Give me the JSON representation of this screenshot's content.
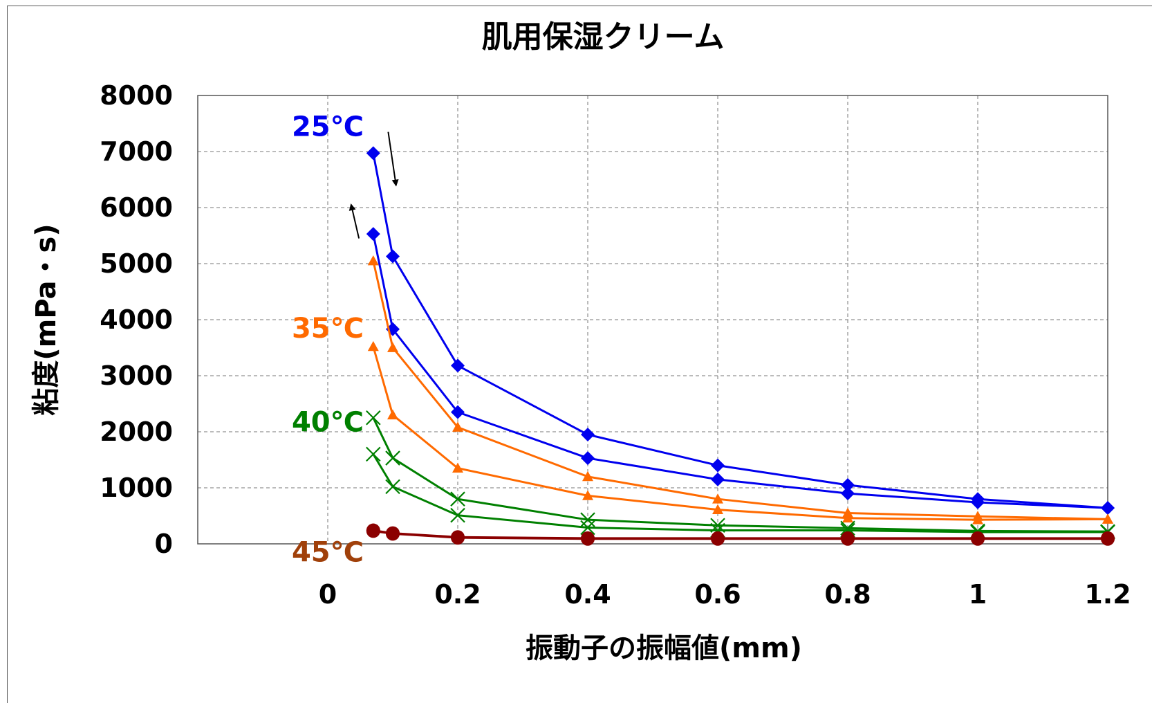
{
  "chart_data": {
    "type": "line",
    "title": "肌用保湿クリーム",
    "xlabel": "振動子の振幅値(mm)",
    "ylabel": "粘度(mPa・s)",
    "xlim": [
      -0.2,
      1.2
    ],
    "ylim": [
      0,
      8000
    ],
    "xticks": [
      "0",
      "0.2",
      "0.4",
      "0.6",
      "0.8",
      "1",
      "1.2"
    ],
    "xtick_values": [
      0,
      0.2,
      0.4,
      0.6,
      0.8,
      1.0,
      1.2
    ],
    "yticks": [
      "0",
      "1000",
      "2000",
      "3000",
      "4000",
      "5000",
      "6000",
      "7000",
      "8000"
    ],
    "ytick_values": [
      0,
      1000,
      2000,
      3000,
      4000,
      5000,
      6000,
      7000,
      8000
    ],
    "grid": true,
    "series": [
      {
        "name": "25℃",
        "color": "#0000ee",
        "marker": "diamond",
        "label_value": [
          0,
          7450
        ],
        "curves": [
          {
            "x": [
              0.07,
              0.1,
              0.2,
              0.4,
              0.6,
              0.8,
              1.0,
              1.2
            ],
            "y": [
              6970,
              5130,
              3180,
              1950,
              1400,
              1050,
              800,
              640
            ]
          },
          {
            "x": [
              0.07,
              0.1,
              0.2,
              0.4,
              0.6,
              0.8,
              1.0,
              1.2
            ],
            "y": [
              5530,
              3830,
              2350,
              1530,
              1150,
              900,
              740,
              640
            ]
          }
        ]
      },
      {
        "name": "35℃",
        "color": "#ff6a00",
        "marker": "triangle",
        "label_value": [
          0,
          3850
        ],
        "curves": [
          {
            "x": [
              0.07,
              0.1,
              0.2,
              0.4,
              0.6,
              0.8,
              1.0,
              1.2
            ],
            "y": [
              5050,
              3500,
              2080,
              1200,
              800,
              550,
              490,
              440
            ]
          },
          {
            "x": [
              0.07,
              0.1,
              0.2,
              0.4,
              0.6,
              0.8,
              1.0,
              1.2
            ],
            "y": [
              3520,
              2300,
              1350,
              860,
              610,
              460,
              430,
              440
            ]
          }
        ]
      },
      {
        "name": "40℃",
        "color": "#008000",
        "marker": "cross",
        "label_value": [
          0,
          2180
        ],
        "curves": [
          {
            "x": [
              0.07,
              0.1,
              0.2,
              0.4,
              0.6,
              0.8,
              1.0,
              1.2
            ],
            "y": [
              2250,
              1530,
              800,
              430,
              330,
              280,
              230,
              220
            ]
          },
          {
            "x": [
              0.07,
              0.1,
              0.2,
              0.4,
              0.6,
              0.8,
              1.0,
              1.2
            ],
            "y": [
              1600,
              1020,
              510,
              290,
              240,
              240,
              210,
              210
            ]
          }
        ]
      },
      {
        "name": "45℃",
        "color": "#8b0000",
        "label_color": "#a0400a",
        "marker": "circle",
        "label_value": [
          0,
          -140
        ],
        "curves": [
          {
            "x": [
              0.07,
              0.1,
              0.2,
              0.4,
              0.6,
              0.8,
              1.0,
              1.2
            ],
            "y": [
              240,
              190,
              120,
              100,
              100,
              100,
              100,
              100
            ]
          },
          {
            "x": [
              0.07,
              0.1,
              0.2,
              0.4,
              0.6,
              0.8,
              1.0,
              1.2
            ],
            "y": [
              230,
              180,
              110,
              90,
              90,
              90,
              90,
              90
            ]
          }
        ]
      }
    ],
    "annotations": [
      {
        "type": "arrow",
        "direction": "down",
        "from": [
          0.093,
          7350
        ],
        "to": [
          0.105,
          6400
        ]
      },
      {
        "type": "arrow",
        "direction": "up",
        "from": [
          0.048,
          5450
        ],
        "to": [
          0.036,
          6050
        ]
      }
    ]
  }
}
